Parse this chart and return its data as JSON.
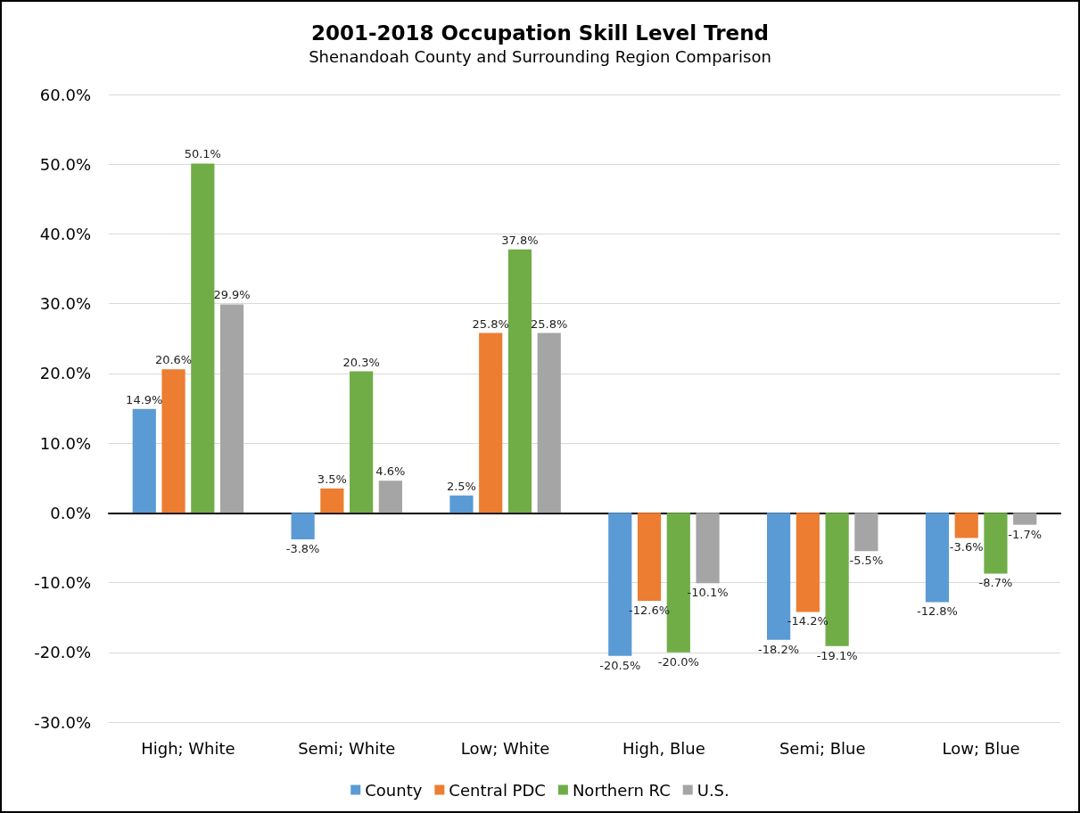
{
  "chart_data": {
    "type": "bar",
    "title": "2001-2018 Occupation Skill Level Trend",
    "subtitle": "Shenandoah County and Surrounding Region Comparison",
    "categories": [
      "High; White",
      "Semi; White",
      "Low; White",
      "High, Blue",
      "Semi; Blue",
      "Low; Blue"
    ],
    "series": [
      {
        "name": "County",
        "color": "#5b9bd5",
        "values": [
          14.9,
          -3.8,
          2.5,
          -20.5,
          -18.2,
          -12.8
        ],
        "value_labels": [
          "14.9%",
          "-3.8%",
          "2.5%",
          "-20.5%",
          "-18.2%",
          "-12.8%"
        ]
      },
      {
        "name": "Central PDC",
        "color": "#ed7d31",
        "values": [
          20.6,
          3.5,
          25.8,
          -12.6,
          -14.2,
          -3.6
        ],
        "value_labels": [
          "20.6%",
          "3.5%",
          "25.8%",
          "-12.6%",
          "-14.2%",
          "-3.6%"
        ]
      },
      {
        "name": "Northern RC",
        "color": "#70ad47",
        "values": [
          50.1,
          20.3,
          37.8,
          -20.0,
          -19.1,
          -8.7
        ],
        "value_labels": [
          "50.1%",
          "20.3%",
          "37.8%",
          "-20.0%",
          "-19.1%",
          "-8.7%"
        ]
      },
      {
        "name": "U.S.",
        "color": "#a5a5a5",
        "values": [
          29.9,
          4.6,
          25.8,
          -10.1,
          -5.5,
          -1.7
        ],
        "value_labels": [
          "29.9%",
          "4.6%",
          "25.8%",
          "-10.1%",
          "-5.5%",
          "-1.7%"
        ]
      }
    ],
    "ylim": [
      -30,
      60
    ],
    "yticks": [
      {
        "value": -30,
        "label": "-30.0%"
      },
      {
        "value": -20,
        "label": "-20.0%"
      },
      {
        "value": -10,
        "label": "-10.0%"
      },
      {
        "value": 0,
        "label": "0.0%"
      },
      {
        "value": 10,
        "label": "10.0%"
      },
      {
        "value": 20,
        "label": "20.0%"
      },
      {
        "value": 30,
        "label": "30.0%"
      },
      {
        "value": 40,
        "label": "40.0%"
      },
      {
        "value": 50,
        "label": "50.0%"
      },
      {
        "value": 60,
        "label": "60.0%"
      }
    ],
    "grid": "y",
    "legend": "bottom"
  }
}
